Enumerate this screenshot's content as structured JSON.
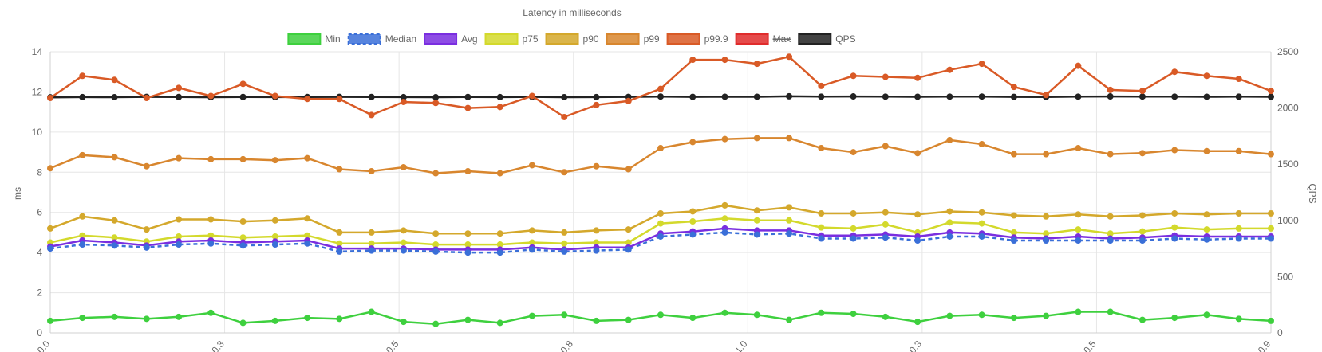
{
  "chart_data": {
    "type": "line",
    "title": "Latency in milliseconds",
    "ylabel": "ms",
    "y2label": "QPS",
    "ylim": [
      0,
      14
    ],
    "y2lim": [
      0,
      2500
    ],
    "yticks": [
      "0",
      "2",
      "4",
      "6",
      "8",
      "10",
      "12",
      "14"
    ],
    "y2ticks": [
      "0",
      "500",
      "1000",
      "1500",
      "2000",
      "2500"
    ],
    "xticks": [
      "0.0",
      "0.3",
      "0.5",
      "0.8",
      "1.0",
      "0.3",
      "0.5",
      "0.9"
    ],
    "grid": true,
    "legend_position": "top",
    "series": [
      {
        "name": "Min",
        "color": "#3ed03e",
        "axis": "left",
        "style": "solid",
        "hidden": false,
        "values": [
          0.6,
          0.75,
          0.8,
          0.7,
          0.8,
          1.0,
          0.5,
          0.6,
          0.75,
          0.7,
          1.05,
          0.55,
          0.45,
          0.65,
          0.5,
          0.85,
          0.9,
          0.6,
          0.65,
          0.9,
          0.75,
          1.0,
          0.9,
          0.65,
          1.0,
          0.95,
          0.8,
          0.55,
          0.85,
          0.9,
          0.75,
          0.85,
          1.05,
          1.05,
          0.65,
          0.75,
          0.9,
          0.7,
          0.6
        ]
      },
      {
        "name": "Median",
        "color": "#3a6fd8",
        "axis": "left",
        "style": "dashed",
        "hidden": false,
        "values": [
          4.2,
          4.4,
          4.35,
          4.25,
          4.4,
          4.45,
          4.35,
          4.4,
          4.45,
          4.05,
          4.1,
          4.1,
          4.05,
          4.0,
          4.0,
          4.15,
          4.05,
          4.1,
          4.15,
          4.8,
          4.9,
          5.0,
          4.9,
          4.95,
          4.7,
          4.7,
          4.75,
          4.6,
          4.8,
          4.8,
          4.6,
          4.6,
          4.6,
          4.6,
          4.6,
          4.7,
          4.65,
          4.7,
          4.7
        ]
      },
      {
        "name": "Avg",
        "color": "#7a2ee0",
        "axis": "left",
        "style": "solid",
        "hidden": false,
        "values": [
          4.3,
          4.6,
          4.5,
          4.35,
          4.55,
          4.6,
          4.5,
          4.55,
          4.6,
          4.2,
          4.2,
          4.2,
          4.15,
          4.15,
          4.15,
          4.25,
          4.15,
          4.25,
          4.25,
          4.95,
          5.05,
          5.2,
          5.1,
          5.1,
          4.85,
          4.85,
          4.9,
          4.8,
          5.0,
          4.95,
          4.75,
          4.7,
          4.8,
          4.7,
          4.75,
          4.85,
          4.8,
          4.8,
          4.8
        ]
      },
      {
        "name": "p75",
        "color": "#d3d92c",
        "axis": "left",
        "style": "solid",
        "hidden": false,
        "values": [
          4.5,
          4.85,
          4.75,
          4.55,
          4.8,
          4.85,
          4.75,
          4.8,
          4.85,
          4.45,
          4.45,
          4.5,
          4.4,
          4.4,
          4.4,
          4.5,
          4.45,
          4.5,
          4.5,
          5.45,
          5.55,
          5.7,
          5.6,
          5.6,
          5.25,
          5.2,
          5.4,
          5.0,
          5.5,
          5.45,
          5.0,
          4.95,
          5.15,
          4.95,
          5.05,
          5.25,
          5.15,
          5.2,
          5.2
        ]
      },
      {
        "name": "p90",
        "color": "#d4a82c",
        "axis": "left",
        "style": "solid",
        "hidden": false,
        "values": [
          5.2,
          5.8,
          5.6,
          5.15,
          5.65,
          5.65,
          5.55,
          5.6,
          5.7,
          5.0,
          5.0,
          5.1,
          4.95,
          4.95,
          4.95,
          5.1,
          5.0,
          5.1,
          5.15,
          5.95,
          6.05,
          6.35,
          6.1,
          6.25,
          5.95,
          5.95,
          6.0,
          5.9,
          6.05,
          6.0,
          5.85,
          5.8,
          5.9,
          5.8,
          5.85,
          5.95,
          5.9,
          5.95,
          5.95
        ]
      },
      {
        "name": "p99",
        "color": "#d8862e",
        "axis": "left",
        "style": "solid",
        "hidden": false,
        "values": [
          8.2,
          8.85,
          8.75,
          8.3,
          8.7,
          8.65,
          8.65,
          8.6,
          8.7,
          8.15,
          8.05,
          8.25,
          7.95,
          8.05,
          7.95,
          8.35,
          8.0,
          8.3,
          8.15,
          9.2,
          9.5,
          9.65,
          9.7,
          9.7,
          9.2,
          9.0,
          9.3,
          8.95,
          9.6,
          9.4,
          8.9,
          8.9,
          9.2,
          8.9,
          8.95,
          9.1,
          9.05,
          9.05,
          8.9
        ]
      },
      {
        "name": "p99.9",
        "color": "#d95a26",
        "axis": "left",
        "style": "solid",
        "hidden": false,
        "values": [
          11.7,
          12.8,
          12.6,
          11.7,
          12.2,
          11.8,
          12.4,
          11.8,
          11.65,
          11.65,
          10.85,
          11.5,
          11.45,
          11.2,
          11.25,
          11.8,
          10.75,
          11.35,
          11.55,
          12.15,
          13.6,
          13.6,
          13.4,
          13.75,
          12.3,
          12.8,
          12.75,
          12.7,
          13.1,
          13.4,
          12.25,
          11.85,
          13.3,
          12.1,
          12.05,
          13.0,
          12.8,
          12.65,
          12.05
        ]
      },
      {
        "name": "Max",
        "color": "#e02c2c",
        "axis": "left",
        "style": "solid",
        "hidden": true,
        "values": []
      },
      {
        "name": "QPS",
        "color": "#222222",
        "axis": "right",
        "style": "solid",
        "hidden": false,
        "values": [
          2095,
          2097,
          2096,
          2099,
          2098,
          2096,
          2098,
          2097,
          2098,
          2099,
          2098,
          2097,
          2096,
          2098,
          2097,
          2099,
          2096,
          2097,
          2099,
          2102,
          2099,
          2100,
          2100,
          2104,
          2101,
          2103,
          2101,
          2100,
          2101,
          2102,
          2099,
          2098,
          2101,
          2103,
          2102,
          2101,
          2100,
          2101,
          2100
        ]
      }
    ]
  }
}
